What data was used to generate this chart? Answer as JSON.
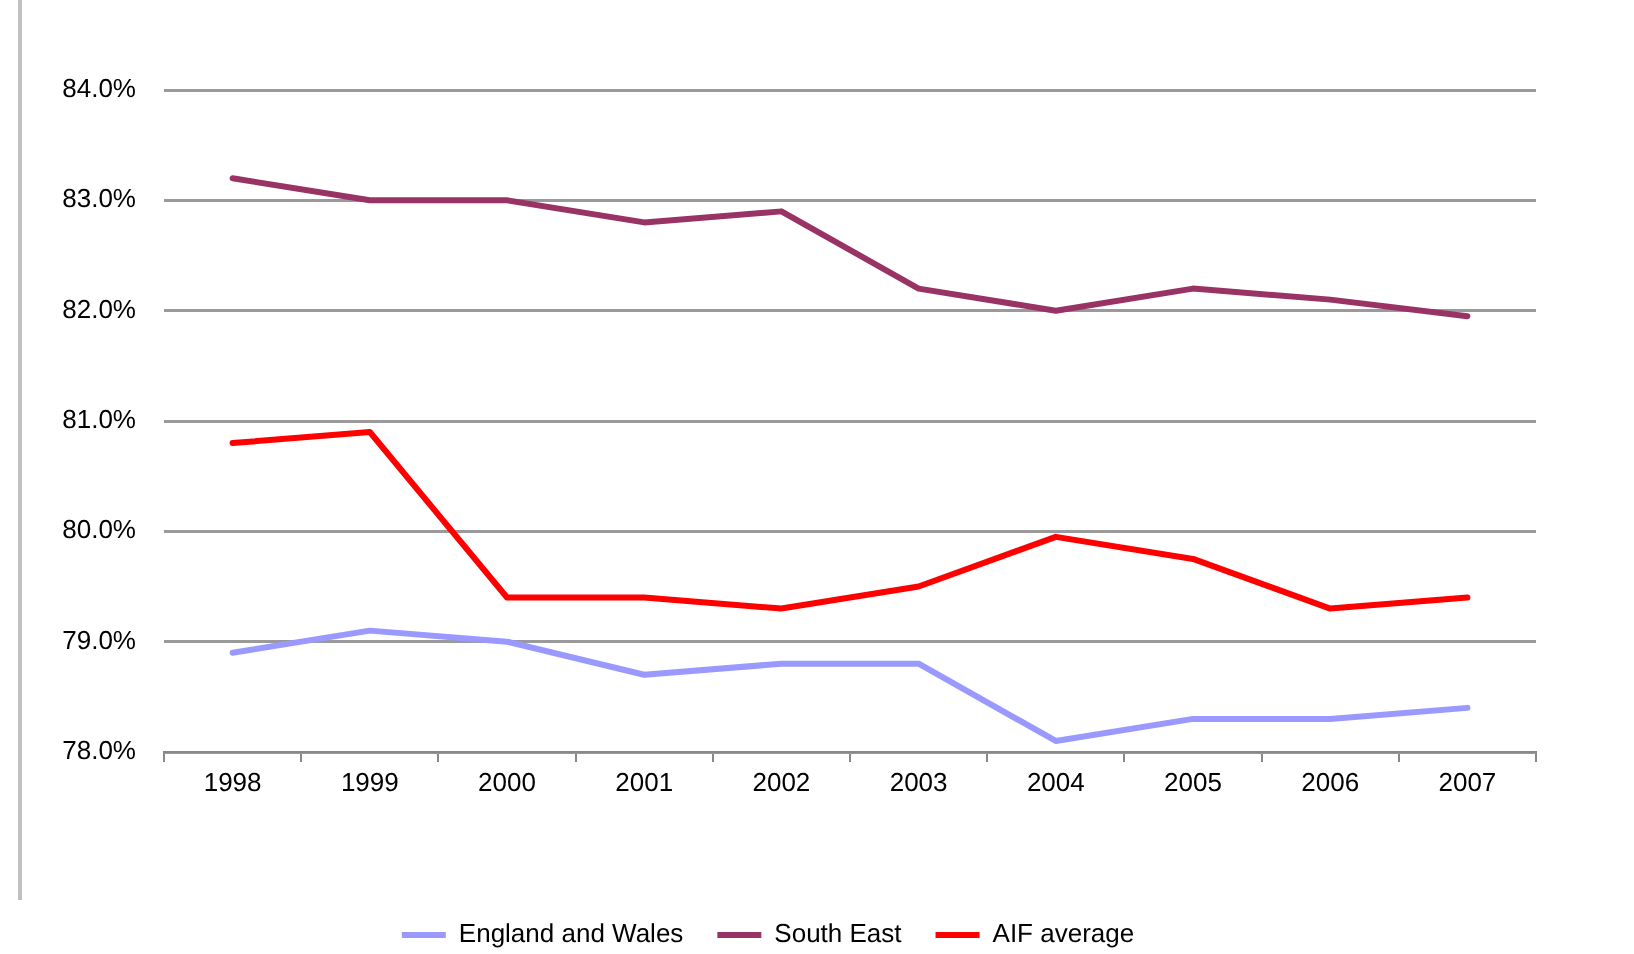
{
  "chart_data": {
    "type": "line",
    "categories": [
      "1998",
      "1999",
      "2000",
      "2001",
      "2002",
      "2003",
      "2004",
      "2005",
      "2006",
      "2007"
    ],
    "series": [
      {
        "name": "England and Wales",
        "color": "#9999ff",
        "values": [
          78.9,
          79.1,
          79.0,
          78.7,
          78.8,
          78.8,
          78.1,
          78.3,
          78.3,
          78.4
        ]
      },
      {
        "name": "South East",
        "color": "#993366",
        "values": [
          83.2,
          83.0,
          83.0,
          82.8,
          82.9,
          82.2,
          82.0,
          82.2,
          82.1,
          81.95
        ]
      },
      {
        "name": "AIF average",
        "color": "#ff0000",
        "values": [
          80.8,
          80.9,
          79.4,
          79.4,
          79.3,
          79.5,
          79.95,
          79.75,
          79.3,
          79.4
        ]
      }
    ],
    "ylim": [
      78,
      84
    ],
    "yticks": [
      {
        "value": 78,
        "label": "78.0%"
      },
      {
        "value": 79,
        "label": "79.0%"
      },
      {
        "value": 80,
        "label": "80.0%"
      },
      {
        "value": 81,
        "label": "81.0%"
      },
      {
        "value": 82,
        "label": "82.0%"
      },
      {
        "value": 83,
        "label": "83.0%"
      },
      {
        "value": 84,
        "label": "84.0%"
      }
    ],
    "grid": "y",
    "legend": "bottom",
    "marker": "none",
    "line_style": "solid"
  }
}
